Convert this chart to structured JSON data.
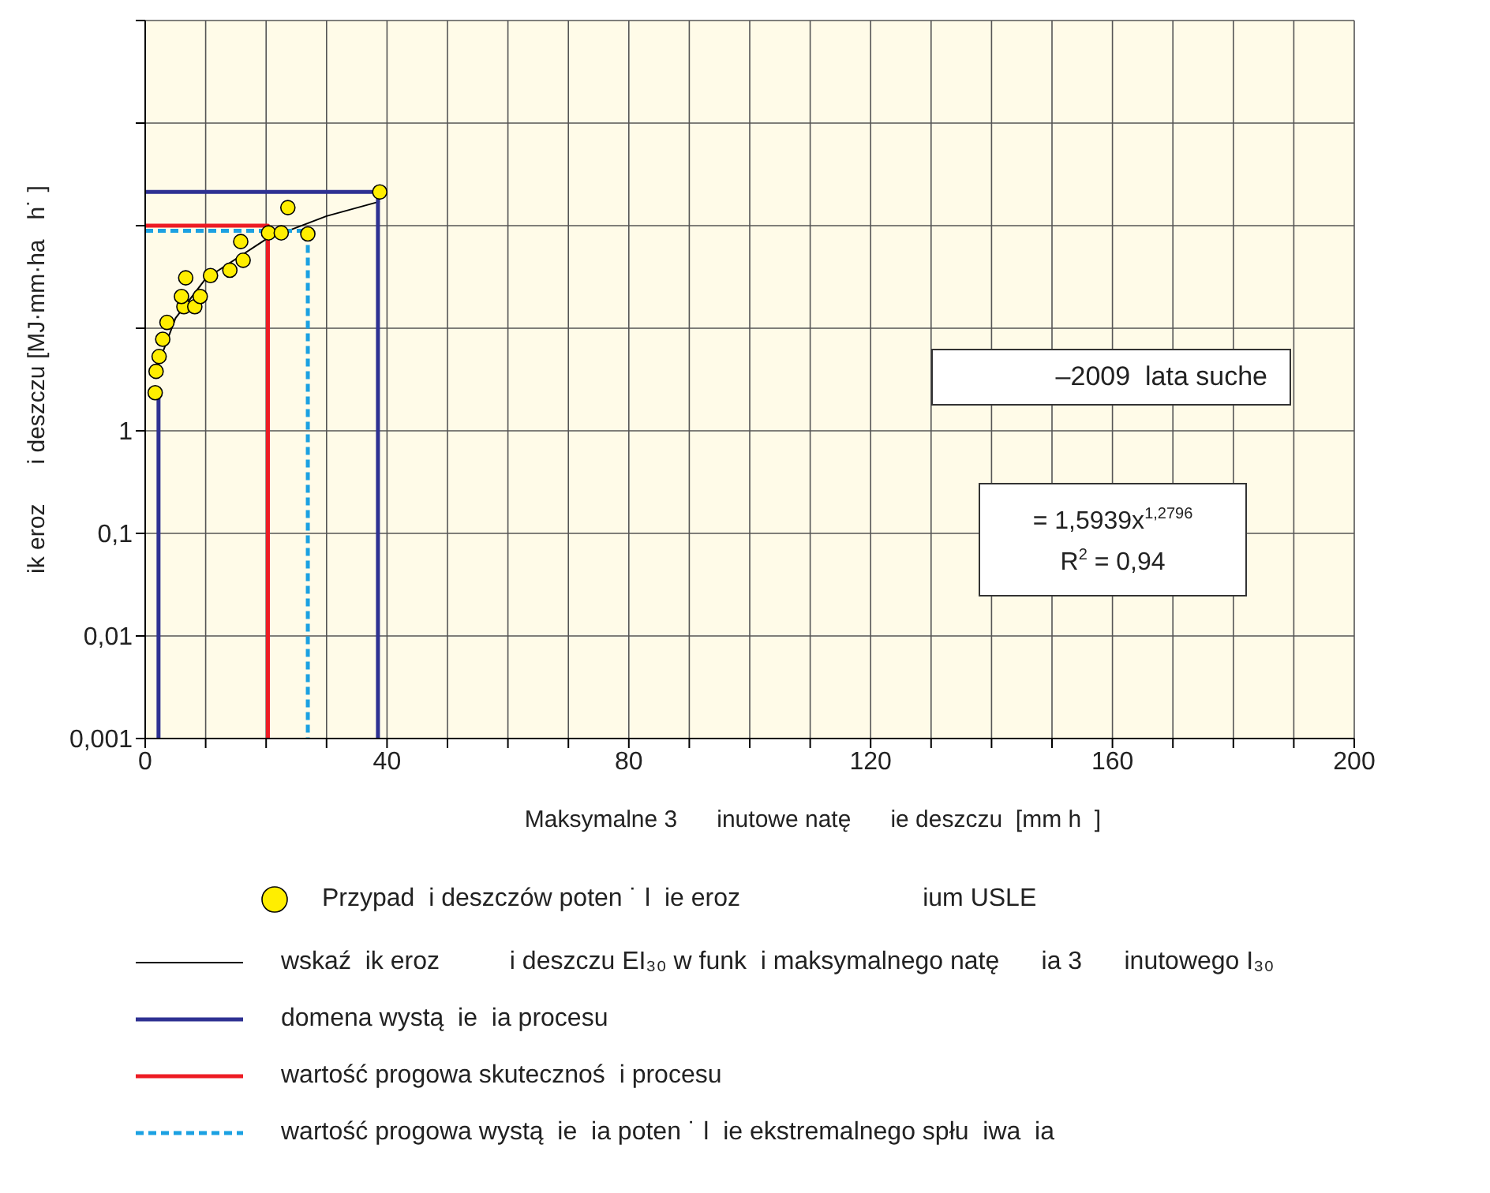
{
  "chart_data": {
    "type": "scatter",
    "xlabel": "Maksymalne 3      inutowe natę      ie deszczu  [mm h  ]",
    "ylabel": "ik eroz      i deszczu [MJ·mm·ha   h˙ ]",
    "log": "y",
    "grid": true,
    "legend": "bottom",
    "xlim": [
      0,
      200
    ],
    "xticks": [
      0,
      {
        "value": 10,
        "label": null
      },
      {
        "value": 20,
        "label": null
      },
      {
        "value": 30,
        "label": null
      },
      40,
      {
        "value": 50,
        "label": null
      },
      {
        "value": 60,
        "label": null
      },
      {
        "value": 70,
        "label": null
      },
      80,
      {
        "value": 90,
        "label": null
      },
      {
        "value": 100,
        "label": null
      },
      {
        "value": 110,
        "label": null
      },
      120,
      {
        "value": 130,
        "label": null
      },
      {
        "value": 140,
        "label": null
      },
      {
        "value": 150,
        "label": null
      },
      160,
      {
        "value": 170,
        "label": null
      },
      {
        "value": 180,
        "label": null
      },
      {
        "value": 190,
        "label": null
      },
      200
    ],
    "ylim": [
      0.001,
      10000
    ],
    "yticks": [
      {
        "value": 0.001,
        "label": "0,001"
      },
      {
        "value": 0.01,
        "label": "0,01"
      },
      {
        "value": 0.1,
        "label": "0,1"
      },
      1,
      {
        "value": 10,
        "label": null
      },
      {
        "value": 100,
        "label": null
      },
      {
        "value": 1000,
        "label": null
      },
      {
        "value": 10000,
        "label": null
      }
    ],
    "annotations": [
      "–2009  lata suche",
      "= 1,5939x$^{1,2796}$",
      "R$^{2}$ = 0,94"
    ],
    "series": [
      {
        "name": "Przypad  i deszczów poten ˙ l  ie eroz                          ium USLE",
        "marker": "circle",
        "color": "#ffee00",
        "x": [
          1.65,
          1.8,
          2.3,
          2.9,
          3.6,
          6.4,
          6.0,
          8.2,
          9.1,
          6.7,
          10.8,
          14,
          16.2,
          15.8,
          20.4,
          22.5,
          23.6,
          26.9,
          38.8
        ],
        "values": [
          2.35,
          3.8,
          5.3,
          7.8,
          11.4,
          16.2,
          20.4,
          16.2,
          20.4,
          31,
          32.6,
          36.8,
          46,
          70,
          85,
          85,
          150,
          83,
          213
        ]
      },
      {
        "name": "wskaź  ik eroz          i deszczu EI₃₀ w funk  i maksymalnego natę      ia 3      inutowego I₃₀",
        "type": "line",
        "marker": "none",
        "line_style": "solid",
        "color": "#000000",
        "x": [
          1.65,
          5,
          10,
          20,
          30,
          38.8
        ],
        "values": [
          3.7,
          12.5,
          30.4,
          73.8,
          124,
          172
        ]
      },
      {
        "name": "domena wystą  ie  ia procesu",
        "type": "line",
        "marker": "none",
        "line_style": "solid",
        "color": "#2e3192",
        "x": [
          0,
          38.5,
          38.5
        ],
        "values": [
          213,
          213,
          0.001
        ]
      },
      {
        "type": "line",
        "marker": "none",
        "line_style": "solid",
        "color": "#2e3192",
        "x": [
          1.6,
          2.2,
          2.2
        ],
        "values": [
          2.3,
          2.3,
          0.001
        ]
      },
      {
        "name": "wartość progowa skutecznoś  i procesu",
        "type": "line",
        "marker": "none",
        "line_style": "solid",
        "color": "#ed1c24",
        "x": [
          0,
          20.3,
          20.3
        ],
        "values": [
          100,
          100,
          0.001
        ]
      },
      {
        "name": "wartość progowa wystą  ie  ia poten ˙ l  ie ekstremalnego spłu  iwa  ia",
        "type": "line",
        "marker": "none",
        "line_style": "dashed",
        "color": "#1ba1e2",
        "x": [
          0,
          26.9,
          26.9
        ],
        "values": [
          89,
          89,
          0.001
        ]
      }
    ]
  }
}
